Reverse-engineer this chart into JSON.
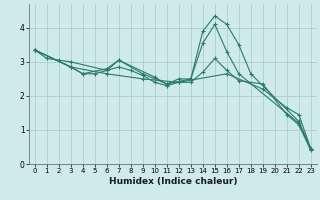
{
  "xlabel": "Humidex (Indice chaleur)",
  "background_color": "#ceeaea",
  "grid_color": "#aacfcf",
  "line_color": "#2a7a6a",
  "xlim": [
    -0.5,
    23.5
  ],
  "ylim": [
    0,
    4.7
  ],
  "yticks": [
    0,
    1,
    2,
    3,
    4
  ],
  "xticks": [
    0,
    1,
    2,
    3,
    4,
    5,
    6,
    7,
    8,
    9,
    10,
    11,
    12,
    13,
    14,
    15,
    16,
    17,
    18,
    19,
    20,
    21,
    22,
    23
  ],
  "lines": [
    {
      "x": [
        0,
        1,
        2,
        3,
        6,
        7,
        10,
        11,
        13,
        14,
        15,
        16,
        17,
        18,
        22,
        23
      ],
      "y": [
        3.35,
        3.1,
        3.05,
        3.0,
        2.75,
        3.05,
        2.55,
        2.35,
        2.5,
        3.9,
        4.35,
        4.1,
        3.5,
        2.65,
        1.25,
        0.45
      ]
    },
    {
      "x": [
        0,
        3,
        4,
        6,
        7,
        9,
        11,
        12,
        13,
        14,
        15,
        16,
        17,
        22,
        23
      ],
      "y": [
        3.35,
        2.85,
        2.65,
        2.8,
        3.05,
        2.65,
        2.35,
        2.5,
        2.5,
        3.55,
        4.1,
        3.3,
        2.65,
        1.2,
        0.45
      ]
    },
    {
      "x": [
        0,
        3,
        4,
        5,
        6,
        7,
        8,
        9,
        10,
        11,
        12,
        13,
        14,
        15,
        16,
        17,
        19,
        21,
        22,
        23
      ],
      "y": [
        3.35,
        2.85,
        2.65,
        2.65,
        2.75,
        2.85,
        2.75,
        2.6,
        2.4,
        2.3,
        2.4,
        2.4,
        2.7,
        3.1,
        2.75,
        2.45,
        2.35,
        1.45,
        1.15,
        0.4
      ]
    },
    {
      "x": [
        0,
        3,
        6,
        9,
        12,
        16,
        19,
        21,
        22,
        23
      ],
      "y": [
        3.35,
        2.85,
        2.65,
        2.5,
        2.4,
        2.65,
        2.2,
        1.65,
        1.45,
        0.45
      ]
    }
  ]
}
